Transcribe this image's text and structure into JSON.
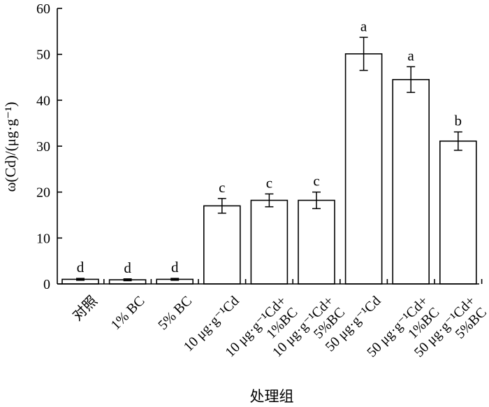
{
  "chart_data": {
    "type": "bar",
    "ylabel": "ω(Cd)/(μg·g⁻¹)",
    "xlabel": "处理组",
    "ylim": [
      0,
      60
    ],
    "yticks": [
      0,
      10,
      20,
      30,
      40,
      50,
      60
    ],
    "grid": false,
    "categories": [
      {
        "lines": [
          "对照"
        ]
      },
      {
        "lines": [
          "1% BC"
        ]
      },
      {
        "lines": [
          "5% BC"
        ]
      },
      {
        "lines": [
          "10 μg·g⁻¹Cd"
        ]
      },
      {
        "lines": [
          "10 μg·g⁻¹Cd+",
          "1%BC"
        ]
      },
      {
        "lines": [
          "10 μg·g⁻¹Cd+",
          "5%BC"
        ]
      },
      {
        "lines": [
          "50 μg·g⁻¹Cd"
        ]
      },
      {
        "lines": [
          "50 μg·g⁻¹Cd+",
          "1%BC"
        ]
      },
      {
        "lines": [
          "50 μg·g⁻¹Cd+",
          "5%BC"
        ]
      }
    ],
    "values": [
      1.0,
      0.9,
      1.0,
      17.0,
      18.2,
      18.2,
      50.1,
      44.5,
      31.1
    ],
    "errors": [
      0.2,
      0.2,
      0.2,
      1.6,
      1.4,
      1.8,
      3.6,
      2.8,
      2.0
    ],
    "significance": [
      "d",
      "d",
      "d",
      "c",
      "c",
      "c",
      "a",
      "a",
      "b"
    ]
  }
}
